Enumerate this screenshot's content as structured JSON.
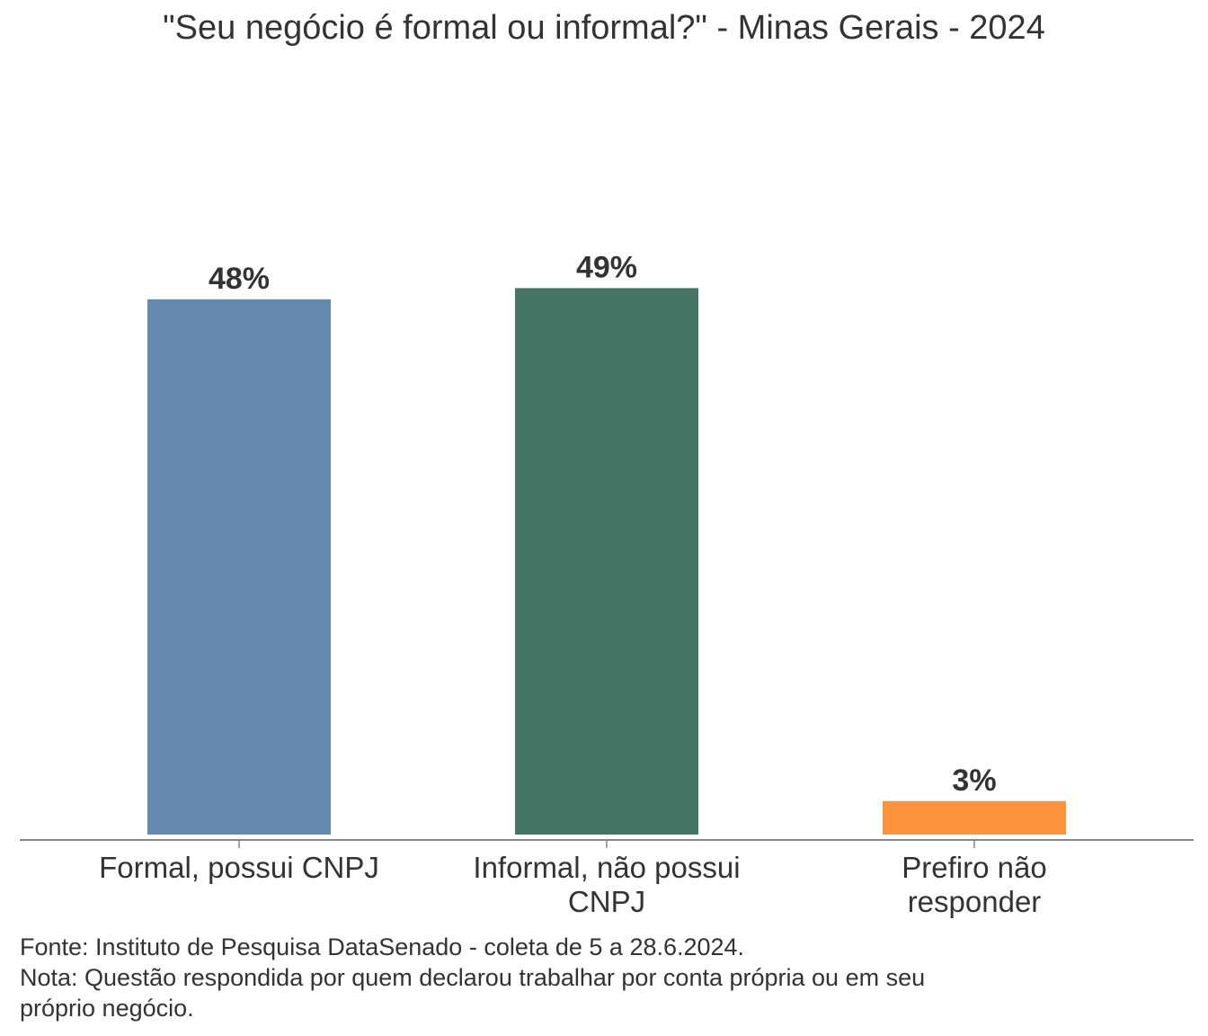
{
  "title": "\"Seu negócio é formal ou informal?\" - Minas Gerais - 2024",
  "chart_data": {
    "type": "bar",
    "title": "\"Seu negócio é formal ou informal?\" - Minas Gerais - 2024",
    "categories": [
      [
        "Formal, possui CNPJ"
      ],
      [
        "Informal, não possui",
        "CNPJ"
      ],
      [
        "Prefiro não",
        "responder"
      ]
    ],
    "values": [
      48,
      49,
      3
    ],
    "value_labels": [
      "48%",
      "49%",
      "3%"
    ],
    "colors": [
      "#6689b0",
      "#467565",
      "#fb923c"
    ],
    "ylim": [
      0,
      100
    ],
    "grid": false,
    "legend": "none"
  },
  "footnote": {
    "source": "Fonte: Instituto de Pesquisa DataSenado - coleta de 5 a 28.6.2024.",
    "note_line1": "Nota: Questão respondida por quem declarou trabalhar por conta própria ou em seu",
    "note_line2": "próprio negócio."
  }
}
